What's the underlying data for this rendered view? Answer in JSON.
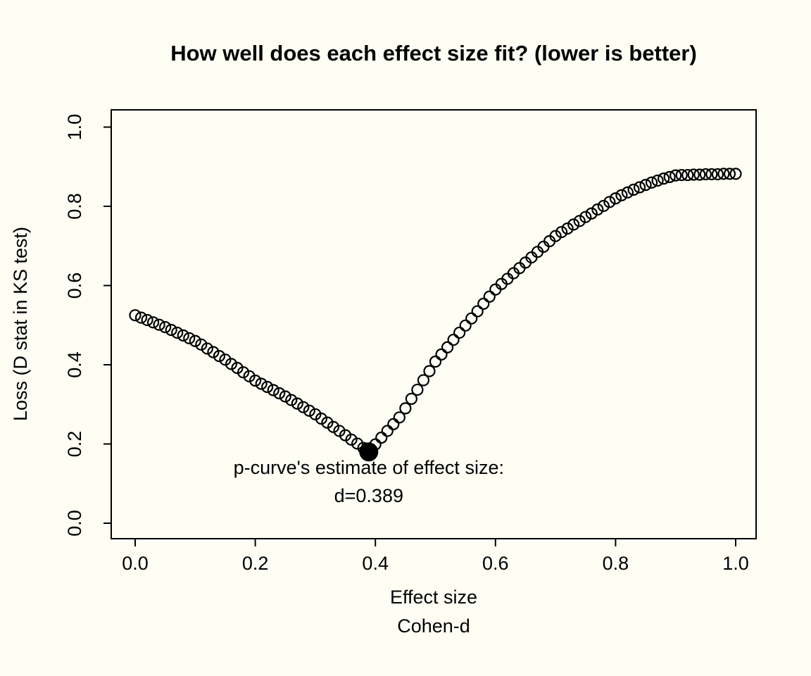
{
  "title": "How well does each effect size fit? (lower is better)",
  "colors": {
    "background": "#FFFEF5",
    "foreground": "#000000"
  },
  "chart_data": {
    "type": "scatter",
    "title": "How well does each effect size fit? (lower is better)",
    "xlabel_line1": "Effect size",
    "xlabel_line2": "Cohen-d",
    "ylabel": "Loss (D stat in KS test)",
    "xlim": [
      0,
      1
    ],
    "ylim": [
      0,
      1
    ],
    "grid": false,
    "legend": "none",
    "marker": "open-circle",
    "x_tick_labels": [
      "0.0",
      "0.2",
      "0.4",
      "0.6",
      "0.8",
      "1.0"
    ],
    "y_tick_labels": [
      "0.0",
      "0.2",
      "0.4",
      "0.6",
      "0.8",
      "1.0"
    ],
    "x_ticks": [
      0.0,
      0.2,
      0.4,
      0.6,
      0.8,
      1.0
    ],
    "y_ticks": [
      0.0,
      0.2,
      0.4,
      0.6,
      0.8,
      1.0
    ],
    "x": [
      0.0,
      0.01,
      0.02,
      0.03,
      0.04,
      0.05,
      0.06,
      0.07,
      0.08,
      0.09,
      0.1,
      0.11,
      0.12,
      0.13,
      0.14,
      0.15,
      0.16,
      0.17,
      0.18,
      0.19,
      0.2,
      0.21,
      0.22,
      0.23,
      0.24,
      0.25,
      0.26,
      0.27,
      0.28,
      0.29,
      0.3,
      0.31,
      0.32,
      0.33,
      0.34,
      0.35,
      0.36,
      0.37,
      0.38,
      0.39,
      0.4,
      0.41,
      0.42,
      0.43,
      0.44,
      0.45,
      0.46,
      0.47,
      0.48,
      0.49,
      0.5,
      0.51,
      0.52,
      0.53,
      0.54,
      0.55,
      0.56,
      0.57,
      0.58,
      0.59,
      0.6,
      0.61,
      0.62,
      0.63,
      0.64,
      0.65,
      0.66,
      0.67,
      0.68,
      0.69,
      0.7,
      0.71,
      0.72,
      0.73,
      0.74,
      0.75,
      0.76,
      0.77,
      0.78,
      0.79,
      0.8,
      0.81,
      0.82,
      0.83,
      0.84,
      0.85,
      0.86,
      0.87,
      0.88,
      0.89,
      0.9,
      0.91,
      0.92,
      0.93,
      0.94,
      0.95,
      0.96,
      0.97,
      0.98,
      0.99,
      1.0
    ],
    "y": [
      0.525,
      0.519,
      0.513,
      0.507,
      0.501,
      0.495,
      0.488,
      0.481,
      0.474,
      0.467,
      0.46,
      0.451,
      0.441,
      0.432,
      0.422,
      0.413,
      0.402,
      0.392,
      0.381,
      0.371,
      0.36,
      0.352,
      0.344,
      0.336,
      0.328,
      0.32,
      0.311,
      0.302,
      0.293,
      0.284,
      0.275,
      0.264,
      0.254,
      0.243,
      0.233,
      0.222,
      0.211,
      0.201,
      0.19,
      0.182,
      0.199,
      0.216,
      0.233,
      0.25,
      0.267,
      0.29,
      0.314,
      0.337,
      0.361,
      0.384,
      0.408,
      0.426,
      0.444,
      0.463,
      0.481,
      0.499,
      0.517,
      0.535,
      0.554,
      0.572,
      0.59,
      0.604,
      0.617,
      0.631,
      0.644,
      0.658,
      0.671,
      0.685,
      0.698,
      0.712,
      0.725,
      0.735,
      0.744,
      0.754,
      0.763,
      0.773,
      0.782,
      0.792,
      0.801,
      0.811,
      0.82,
      0.828,
      0.835,
      0.842,
      0.848,
      0.854,
      0.86,
      0.865,
      0.87,
      0.874,
      0.878,
      0.879,
      0.879,
      0.88,
      0.88,
      0.881,
      0.881,
      0.881,
      0.882,
      0.882,
      0.882
    ],
    "estimate": {
      "x": 0.389,
      "y": 0.18,
      "marker": "filled-circle"
    },
    "annotation": {
      "line1": "p-curve's estimate of effect size:",
      "line2": "d=0.389"
    }
  }
}
